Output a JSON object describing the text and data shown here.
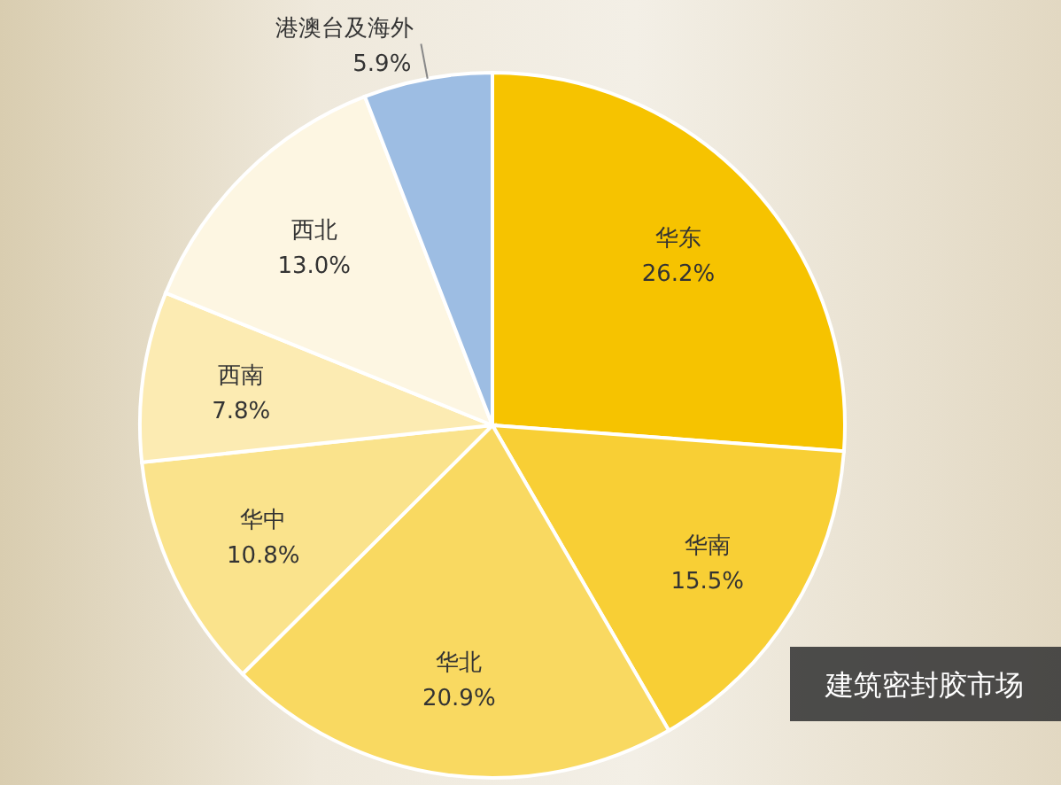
{
  "chart_data": {
    "type": "pie",
    "categories": [
      "华东",
      "华南",
      "华北",
      "华中",
      "西南",
      "西北",
      "港澳台及海外"
    ],
    "values": [
      26.2,
      15.5,
      20.9,
      10.8,
      7.8,
      13.0,
      5.9
    ],
    "value_labels": [
      "26.2%",
      "15.5%",
      "20.9%",
      "10.8%",
      "7.8%",
      "13.0%",
      "5.9%"
    ],
    "colors": [
      "#f6c300",
      "#f8cf35",
      "#f9d961",
      "#fae38c",
      "#fcebb2",
      "#fdf6e2",
      "#9dbde3"
    ],
    "annotations": [
      "建筑密封胶市场"
    ]
  }
}
